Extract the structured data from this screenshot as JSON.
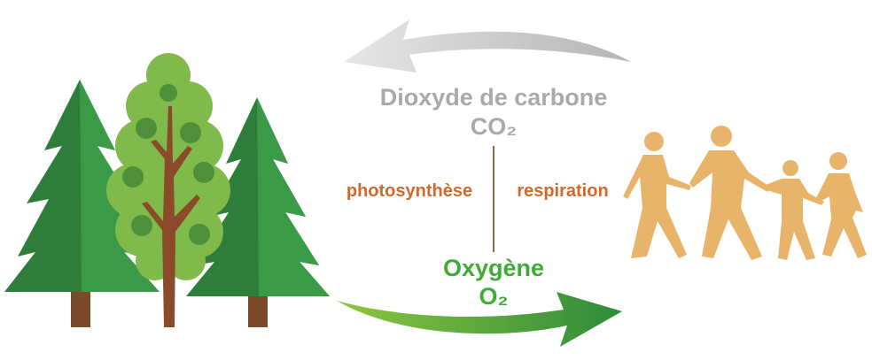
{
  "top_label": {
    "name": "Dioxyde de carbone",
    "formula": "CO₂"
  },
  "left_label": "photosynthèse",
  "right_label": "respiration",
  "bottom_label": {
    "name": "Oxygène",
    "formula": "O₂"
  }
}
